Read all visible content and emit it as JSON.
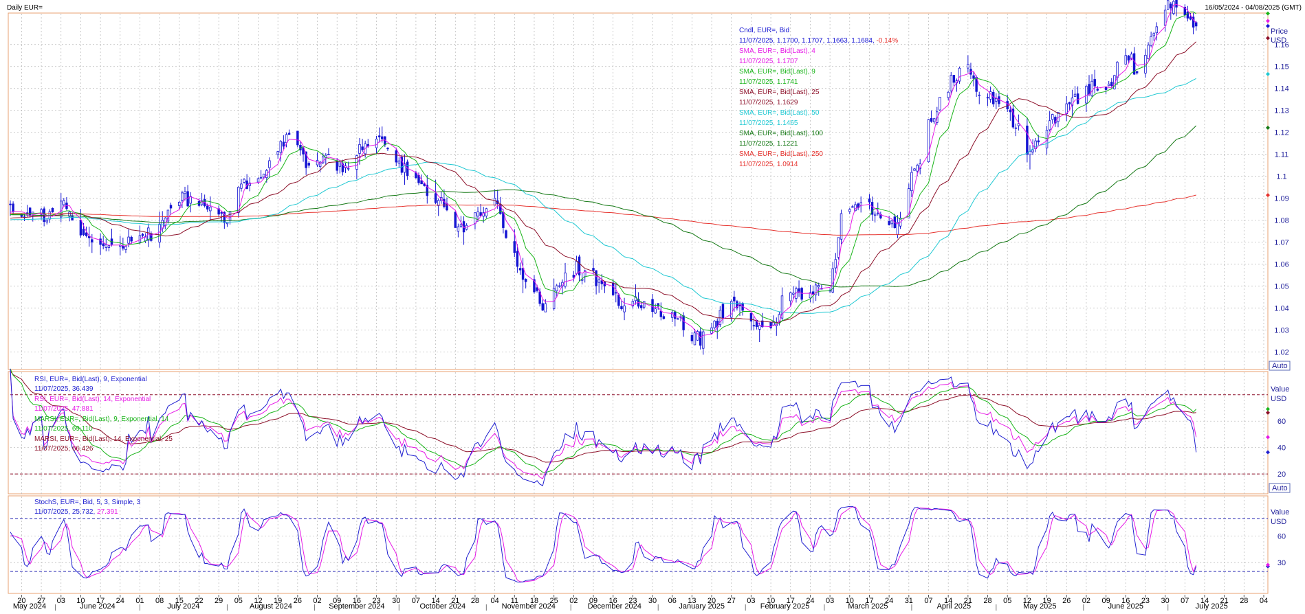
{
  "header": {
    "title": "Daily EUR=",
    "date_range": "16/05/2024 - 04/08/2025 (GMT)"
  },
  "colors": {
    "candle": "#1414d2",
    "sma4": "#e619e6",
    "sma9": "#19b419",
    "sma25": "#8c0f28",
    "sma50": "#1ec8d2",
    "sma100": "#147814",
    "sma250": "#e6322d",
    "rsi9": "#2020d0",
    "rsi14": "#e619e6",
    "marsi9": "#19b419",
    "marsi14": "#8c0f28",
    "stoch_k": "#2020d0",
    "stoch_d": "#e619e6",
    "grid": "#b4b4b4",
    "panel_border": "#e8a070",
    "guide_red": "#8c0f28",
    "guide_blue": "#2020b0",
    "neg_change": "#e6322d"
  },
  "price_panel": {
    "legend": [
      {
        "label": "Cndl, EUR=, Bid",
        "value": "11/07/2025, 1.1700, 1.1707, 1.1663, 1.1684,",
        "extra": "-0.14%",
        "color_key": "candle"
      },
      {
        "label": "SMA, EUR=, Bid(Last),  4",
        "value": "11/07/2025, 1.1707",
        "color_key": "sma4"
      },
      {
        "label": "SMA, EUR=, Bid(Last),  9",
        "value": "11/07/2025, 1.1741",
        "color_key": "sma9"
      },
      {
        "label": "SMA, EUR=, Bid(Last),  25",
        "value": "11/07/2025, 1.1629",
        "color_key": "sma25"
      },
      {
        "label": "SMA, EUR=, Bid(Last),  50",
        "value": "11/07/2025, 1.1465",
        "color_key": "sma50"
      },
      {
        "label": "SMA, EUR=, Bid(Last),  100",
        "value": "11/07/2025, 1.1221",
        "color_key": "sma100"
      },
      {
        "label": "SMA, EUR=, Bid(Last),  250",
        "value": "11/07/2025, 1.0914",
        "color_key": "sma250"
      }
    ],
    "axis_title": "Price",
    "axis_unit": "USD",
    "auto_label": "Auto",
    "y_ticks": [
      "1.02",
      "1.03",
      "1.04",
      "1.05",
      "1.06",
      "1.07",
      "1.08",
      "1.09",
      "1.1",
      "1.11",
      "1.12",
      "1.13",
      "1.14",
      "1.15",
      "1.16"
    ]
  },
  "rsi_panel": {
    "legend": [
      {
        "label": "RSI, EUR=, Bid(Last),  9, Exponential",
        "value": "11/07/2025, 36.439",
        "color_key": "rsi9"
      },
      {
        "label": "RSI, EUR=, Bid(Last),  14, Exponential",
        "value": "11/07/2025, 47.881",
        "color_key": "rsi14"
      },
      {
        "label": "MARSI, EUR=, Bid(Last),  9, Exponential, 14",
        "value": "11/07/2025, 69.110",
        "color_key": "marsi9"
      },
      {
        "label": "MARSI, EUR=, Bid(Last),  14, Exponential, 25",
        "value": "11/07/2025, 66.426",
        "color_key": "marsi14"
      }
    ],
    "axis_title": "Value",
    "axis_unit": "USD",
    "auto_label": "Auto",
    "y_ticks": [
      "20",
      "40",
      "60"
    ]
  },
  "stoch_panel": {
    "legend_label": "StochS, EUR=, Bid,  5, 3, Simple, 3",
    "legend_value_date": "11/07/2025, 25.732,",
    "legend_value_extra": "27.391",
    "axis_title": "Value",
    "axis_unit": "USD",
    "y_ticks": [
      "30",
      "60"
    ]
  },
  "x_axis": {
    "day_ticks": [
      "20",
      "27",
      "03",
      "10",
      "17",
      "24",
      "01",
      "08",
      "15",
      "22",
      "29",
      "05",
      "12",
      "19",
      "26",
      "02",
      "09",
      "16",
      "23",
      "30",
      "07",
      "14",
      "21",
      "28",
      "04",
      "11",
      "18",
      "25",
      "02",
      "09",
      "16",
      "23",
      "30",
      "06",
      "13",
      "20",
      "27",
      "03",
      "10",
      "17",
      "24",
      "03",
      "10",
      "17",
      "24",
      "31",
      "07",
      "14",
      "21",
      "28",
      "05",
      "12",
      "19",
      "26",
      "02",
      "09",
      "16",
      "23",
      "30",
      "07",
      "14",
      "21",
      "28",
      "04"
    ],
    "months": [
      "May 2024",
      "June 2024",
      "July 2024",
      "August 2024",
      "September 2024",
      "October 2024",
      "November 2024",
      "December 2024",
      "January 2025",
      "February 2025",
      "March 2025",
      "April 2025",
      "May 2025",
      "June 2025",
      "July 2025"
    ]
  },
  "chart_data": {
    "type": "line",
    "instrument": "EUR=",
    "x_range": [
      "2024-05-16",
      "2025-08-04"
    ],
    "price_ylim": [
      1.012,
      1.174
    ],
    "rsi_ylim": [
      5,
      97
    ],
    "stoch_ylim": [
      -5,
      105
    ],
    "close_anchors": [
      [
        "2024-05-16",
        1.087
      ],
      [
        "2024-05-23",
        1.082
      ],
      [
        "2024-05-29",
        1.08
      ],
      [
        "2024-06-04",
        1.089
      ],
      [
        "2024-06-07",
        1.08
      ],
      [
        "2024-06-14",
        1.07
      ],
      [
        "2024-06-21",
        1.069
      ],
      [
        "2024-06-26",
        1.068
      ],
      [
        "2024-07-01",
        1.073
      ],
      [
        "2024-07-10",
        1.081
      ],
      [
        "2024-07-17",
        1.093
      ],
      [
        "2024-07-25",
        1.085
      ],
      [
        "2024-08-01",
        1.079
      ],
      [
        "2024-08-05",
        1.095
      ],
      [
        "2024-08-14",
        1.101
      ],
      [
        "2024-08-23",
        1.119
      ],
      [
        "2024-08-30",
        1.105
      ],
      [
        "2024-09-06",
        1.11
      ],
      [
        "2024-09-11",
        1.102
      ],
      [
        "2024-09-18",
        1.112
      ],
      [
        "2024-09-25",
        1.117
      ],
      [
        "2024-10-01",
        1.107
      ],
      [
        "2024-10-08",
        1.097
      ],
      [
        "2024-10-15",
        1.089
      ],
      [
        "2024-10-23",
        1.078
      ],
      [
        "2024-10-30",
        1.082
      ],
      [
        "2024-11-04",
        1.09
      ],
      [
        "2024-11-08",
        1.072
      ],
      [
        "2024-11-14",
        1.053
      ],
      [
        "2024-11-22",
        1.042
      ],
      [
        "2024-11-29",
        1.056
      ],
      [
        "2024-12-06",
        1.057
      ],
      [
        "2024-12-13",
        1.05
      ],
      [
        "2024-12-20",
        1.041
      ],
      [
        "2024-12-27",
        1.043
      ],
      [
        "2025-01-02",
        1.036
      ],
      [
        "2025-01-06",
        1.038
      ],
      [
        "2025-01-13",
        1.025
      ],
      [
        "2025-01-20",
        1.031
      ],
      [
        "2025-01-27",
        1.043
      ],
      [
        "2025-02-03",
        1.034
      ],
      [
        "2025-02-10",
        1.031
      ],
      [
        "2025-02-17",
        1.047
      ],
      [
        "2025-02-24",
        1.047
      ],
      [
        "2025-03-03",
        1.048
      ],
      [
        "2025-03-07",
        1.083
      ],
      [
        "2025-03-14",
        1.088
      ],
      [
        "2025-03-21",
        1.081
      ],
      [
        "2025-03-27",
        1.079
      ],
      [
        "2025-04-03",
        1.105
      ],
      [
        "2025-04-11",
        1.136
      ],
      [
        "2025-04-21",
        1.151
      ],
      [
        "2025-04-25",
        1.137
      ],
      [
        "2025-05-02",
        1.133
      ],
      [
        "2025-05-09",
        1.124
      ],
      [
        "2025-05-12",
        1.11
      ],
      [
        "2025-05-19",
        1.121
      ],
      [
        "2025-05-26",
        1.133
      ],
      [
        "2025-06-02",
        1.141
      ],
      [
        "2025-06-10",
        1.142
      ],
      [
        "2025-06-16",
        1.155
      ],
      [
        "2025-06-20",
        1.147
      ],
      [
        "2025-06-26",
        1.165
      ],
      [
        "2025-07-01",
        1.18
      ],
      [
        "2025-07-04",
        1.177
      ],
      [
        "2025-07-08",
        1.172
      ],
      [
        "2025-07-11",
        1.1684
      ]
    ],
    "last_bar": {
      "date": "2025-07-11",
      "open": 1.17,
      "high": 1.1707,
      "low": 1.1663,
      "close": 1.1684,
      "change_pct": -0.14
    },
    "sma_last": {
      "SMA 4": 1.1707,
      "SMA 9": 1.1741,
      "SMA 25": 1.1629,
      "SMA 50": 1.1465,
      "SMA 100": 1.1221,
      "SMA 250": 1.0914
    },
    "rsi_last": {
      "RSI 9": 36.439,
      "RSI 14": 47.881,
      "MARSI 9,14": 69.11,
      "MARSI 14,25": 66.426
    },
    "rsi_guides": [
      80,
      20
    ],
    "stoch_last": {
      "%K": 25.732,
      "%D": 27.391
    },
    "stoch_guides": [
      80,
      20
    ]
  }
}
